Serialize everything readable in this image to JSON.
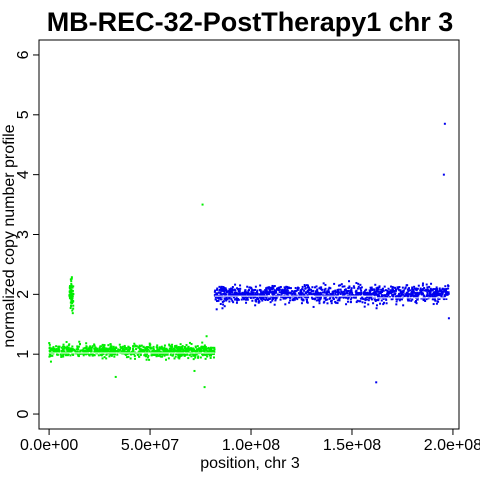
{
  "chart_data": {
    "type": "scatter",
    "title": "MB-REC-32-PostTherapy1 chr 3",
    "xlabel": "position, chr 3",
    "ylabel": "normalized copy number profile",
    "xlim": [
      -5000000,
      203000000
    ],
    "ylim": [
      -0.25,
      6.25
    ],
    "x_ticks": [
      0,
      50000000,
      100000000,
      150000000,
      200000000
    ],
    "x_tick_labels": [
      "0.0e+00",
      "5.0e+07",
      "1.0e+08",
      "1.5e+08",
      "2.0e+08"
    ],
    "y_ticks": [
      0,
      1,
      2,
      3,
      4,
      5,
      6
    ],
    "y_tick_labels": [
      "0",
      "1",
      "2",
      "3",
      "4",
      "5",
      "6"
    ],
    "grid": false,
    "series": [
      {
        "color": "#00ee00",
        "segments": [
          {
            "x_start": 0,
            "x_end": 82000000,
            "mean": 1.05,
            "spread": 0.05
          }
        ],
        "cluster": {
          "x_start": 10000000,
          "x_end": 12000000,
          "mean": 2.0,
          "spread": 0.12
        },
        "outliers": [
          [
            76000000,
            3.5
          ],
          [
            77000000,
            0.45
          ],
          [
            33000000,
            0.62
          ],
          [
            72000000,
            0.72
          ],
          [
            78000000,
            1.3
          ]
        ],
        "segment_lines": [
          {
            "x_start": 0,
            "x_end": 82000000,
            "y": 1.02
          }
        ]
      },
      {
        "color": "#0000ee",
        "segments": [
          {
            "x_start": 82000000,
            "x_end": 198000000,
            "mean": 2.0,
            "spread": 0.07
          }
        ],
        "outliers": [
          [
            196000000,
            4.85
          ],
          [
            195500000,
            4.0
          ],
          [
            162000000,
            0.53
          ],
          [
            83000000,
            1.75
          ],
          [
            198000000,
            1.6
          ]
        ],
        "segment_lines": [
          {
            "x_start": 82000000,
            "x_end": 160000000,
            "y": 1.97
          },
          {
            "x_start": 160000000,
            "x_end": 198000000,
            "y": 1.94
          }
        ]
      }
    ]
  }
}
